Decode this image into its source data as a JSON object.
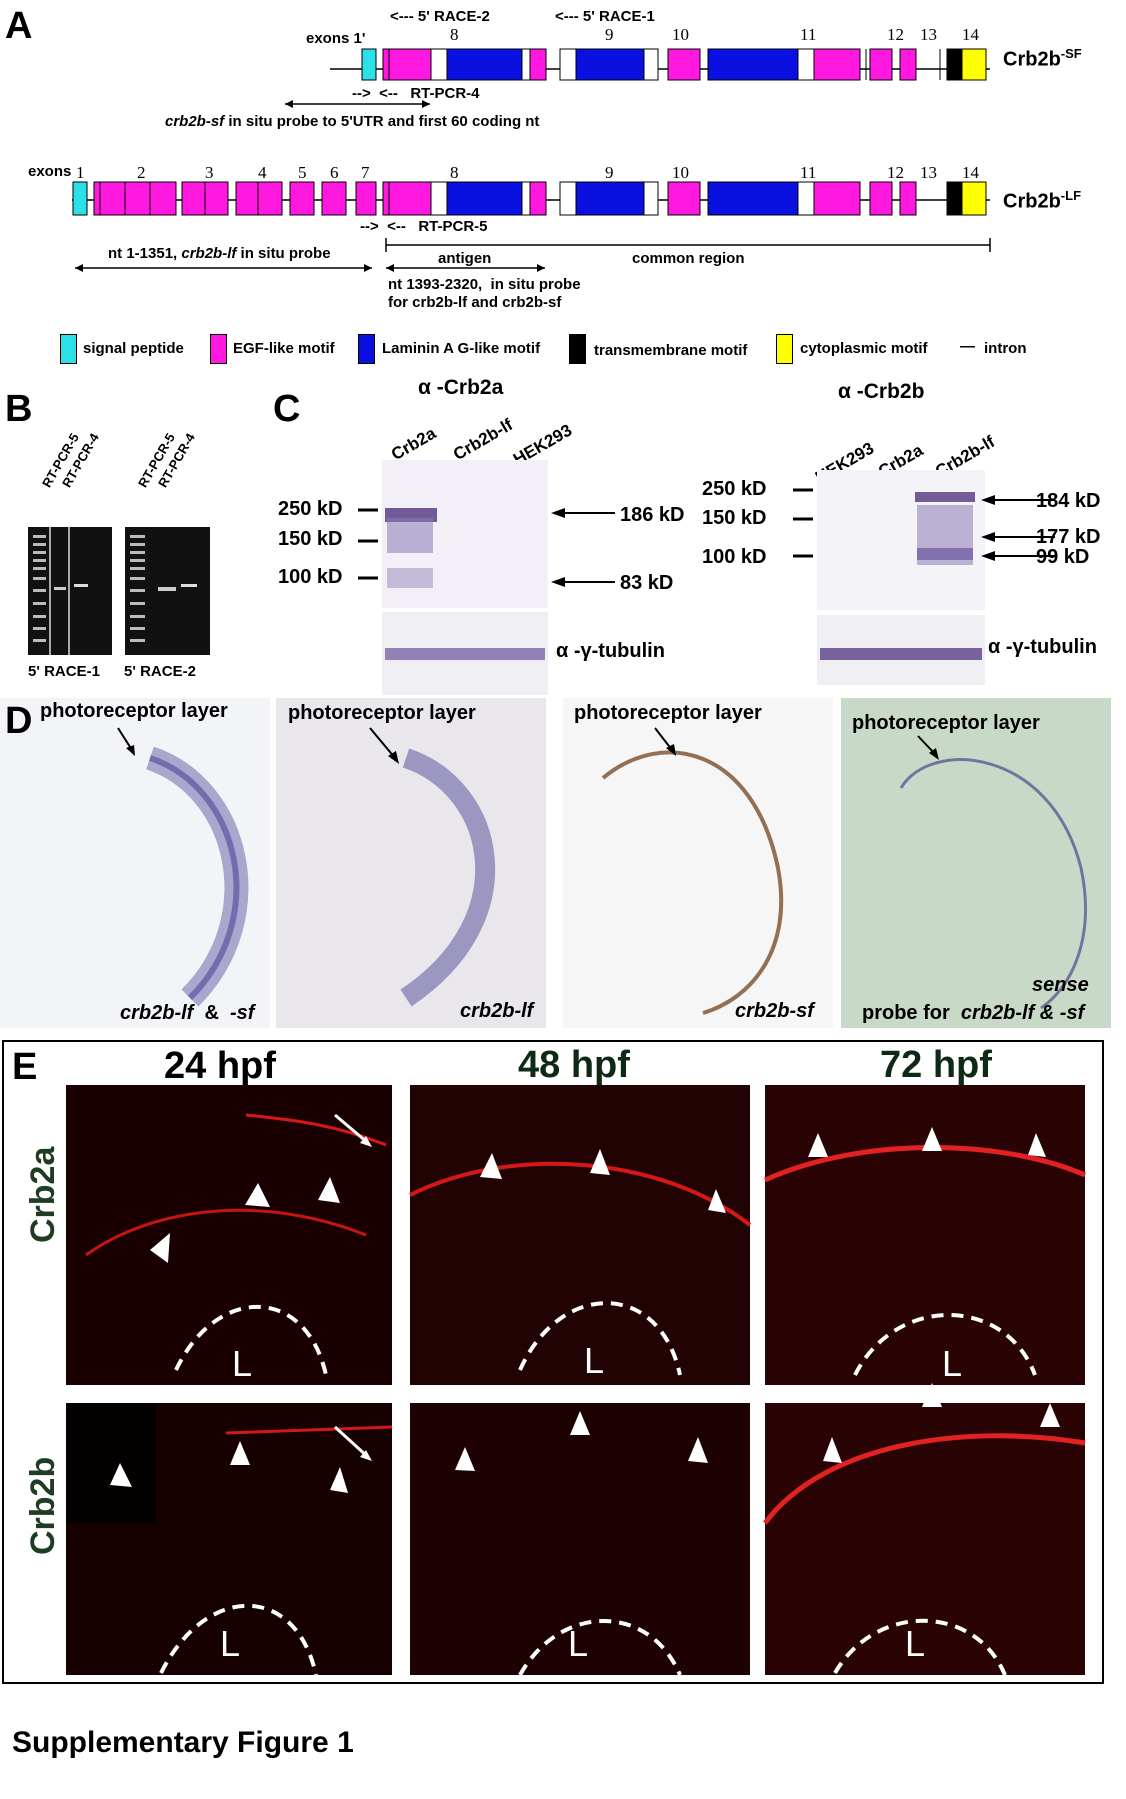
{
  "panels": {
    "A": "A",
    "B": "B",
    "C": "C",
    "D": "D",
    "E": "E"
  },
  "panel_a": {
    "race2": "<--- 5' RACE-2",
    "race1": "<--- 5' RACE-1",
    "exons1p_label": "exons 1'",
    "exons_label": "exons",
    "sf_exon_numbers": [
      "8",
      "9",
      "10",
      "11",
      "12",
      "13",
      "14"
    ],
    "lf_exon_numbers": [
      "1",
      "2",
      "3",
      "4",
      "5",
      "6",
      "7",
      "8",
      "9",
      "10",
      "11",
      "12",
      "13",
      "14"
    ],
    "sf_name": "Crb2b",
    "sf_sup": "-SF",
    "lf_name": "Crb2b",
    "lf_sup": "-LF",
    "rtpcr4": "-->  <--   RT-PCR-4",
    "sf_probe_italic": "crb2b-sf",
    "sf_probe_rest": " in situ probe to 5'UTR and first 60 coding nt",
    "rtpcr5": "-->  <--   RT-PCR-5",
    "antigen": "antigen",
    "lf_probe": "nt 1-1351, ",
    "lf_probe_italic": "crb2b-lf",
    "lf_probe_rest": " in situ probe",
    "common_region": "common region",
    "nt_probe_line1": "nt 1393-2320,  in situ probe",
    "nt_probe_line2": "for crb2b-lf and crb2b-sf",
    "legend": {
      "signal": "signal peptide",
      "egf": "EGF-like motif",
      "laminin": "Laminin A G-like motif",
      "tm": "transmembrane motif",
      "cyto": "cytoplasmic motif",
      "intron_symbol": "—",
      "intron": "intron"
    },
    "colors": {
      "signal": "#2ce0e8",
      "egf": "#ff19e0",
      "laminin": "#0a10e0",
      "tm": "#000000",
      "cyto": "#ffff00"
    }
  },
  "panel_b": {
    "gel1_lanes": [
      "RT-PCR-5",
      "RT-PCR-4"
    ],
    "gel2_lanes": [
      "RT-PCR-5",
      "RT-PCR-4"
    ],
    "gel1_caption": "5' RACE-1",
    "gel2_caption": "5' RACE-2"
  },
  "panel_c": {
    "left_title": "α -Crb2a",
    "left_lanes": [
      "Crb2a",
      "Crb2b-lf",
      "HEK293"
    ],
    "left_markers": [
      "250 kD",
      "150 kD",
      "100 kD"
    ],
    "left_bands": [
      "186 kD",
      "83 kD"
    ],
    "left_tubulin": "α -γ-tubulin",
    "right_title": "α -Crb2b",
    "right_lanes": [
      "HEK293",
      "Crb2a",
      "Crb2b-lf"
    ],
    "right_markers": [
      "250 kD",
      "150 kD",
      "100 kD"
    ],
    "right_bands": [
      "184 kD",
      "177 kD",
      "99 kD"
    ],
    "right_tubulin": "α -γ-tubulin"
  },
  "panel_d": {
    "layer_label": "photoreceptor layer",
    "captions": [
      {
        "italic": "crb2b-lf",
        "rest": "  &  ",
        "italic2": "-sf"
      },
      {
        "italic": "crb2b-lf",
        "rest": "",
        "italic2": ""
      },
      {
        "italic": "crb2b-sf",
        "rest": "",
        "italic2": ""
      },
      {
        "pre_italic": "sense",
        "plain": "probe for  ",
        "italic": "crb2b-lf & -sf"
      }
    ]
  },
  "panel_e": {
    "timepoints": [
      "24 hpf",
      "48 hpf",
      "72 hpf"
    ],
    "rows": [
      "Crb2a",
      "Crb2b"
    ],
    "lens_label": "L"
  },
  "figure_caption": "Supplementary Figure 1"
}
